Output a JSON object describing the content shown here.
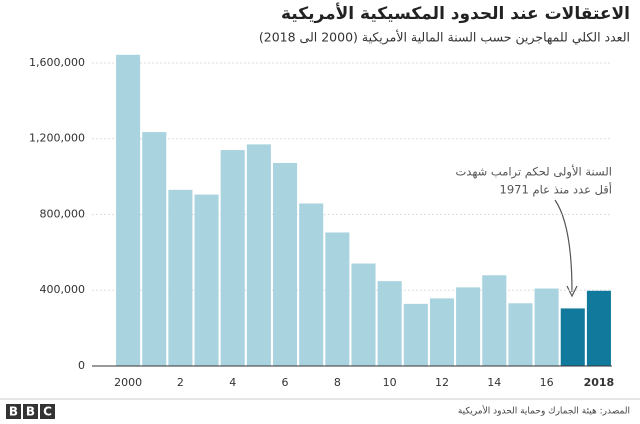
{
  "chart_data": {
    "type": "bar",
    "title": "الاعتقالات عند الحدود المكسيكية الأمريكية",
    "subtitle": "العدد الكلي للمهاجرين حسب السنة المالية الأمريكية (2000 الى 2018)",
    "categories": [
      "2000",
      null,
      "2",
      null,
      "4",
      null,
      "6",
      null,
      "8",
      null,
      "10",
      null,
      "12",
      null,
      "14",
      null,
      "16",
      null,
      "2018"
    ],
    "values": [
      1643000,
      1235000,
      930000,
      905000,
      1140000,
      1170000,
      1072000,
      858000,
      705000,
      541000,
      448000,
      328000,
      357000,
      415000,
      479000,
      331000,
      409000,
      304000,
      397000
    ],
    "colors": [
      "#a8d3df",
      "#a8d3df",
      "#a8d3df",
      "#a8d3df",
      "#a8d3df",
      "#a8d3df",
      "#a8d3df",
      "#a8d3df",
      "#a8d3df",
      "#a8d3df",
      "#a8d3df",
      "#a8d3df",
      "#a8d3df",
      "#a8d3df",
      "#a8d3df",
      "#a8d3df",
      "#a8d3df",
      "#117a9c",
      "#117a9c"
    ],
    "ylim": [
      0,
      1700000
    ],
    "yticks": [
      0,
      {
        "value": 400000,
        "label": "400,000"
      },
      {
        "value": 800000,
        "label": "800,000"
      },
      {
        "value": 1200000,
        "label": "1,200,000"
      },
      {
        "value": 1600000,
        "label": "1,600,000"
      }
    ],
    "grid": true,
    "annotation": [
      "السنة الأولى لحكم ترامب شهدت",
      "أقل عدد منذ عام 1971"
    ],
    "source": "المصدر: هيئة الجمارك وحماية الحدود الأمريكية",
    "logo": [
      "B",
      "B",
      "C"
    ]
  }
}
